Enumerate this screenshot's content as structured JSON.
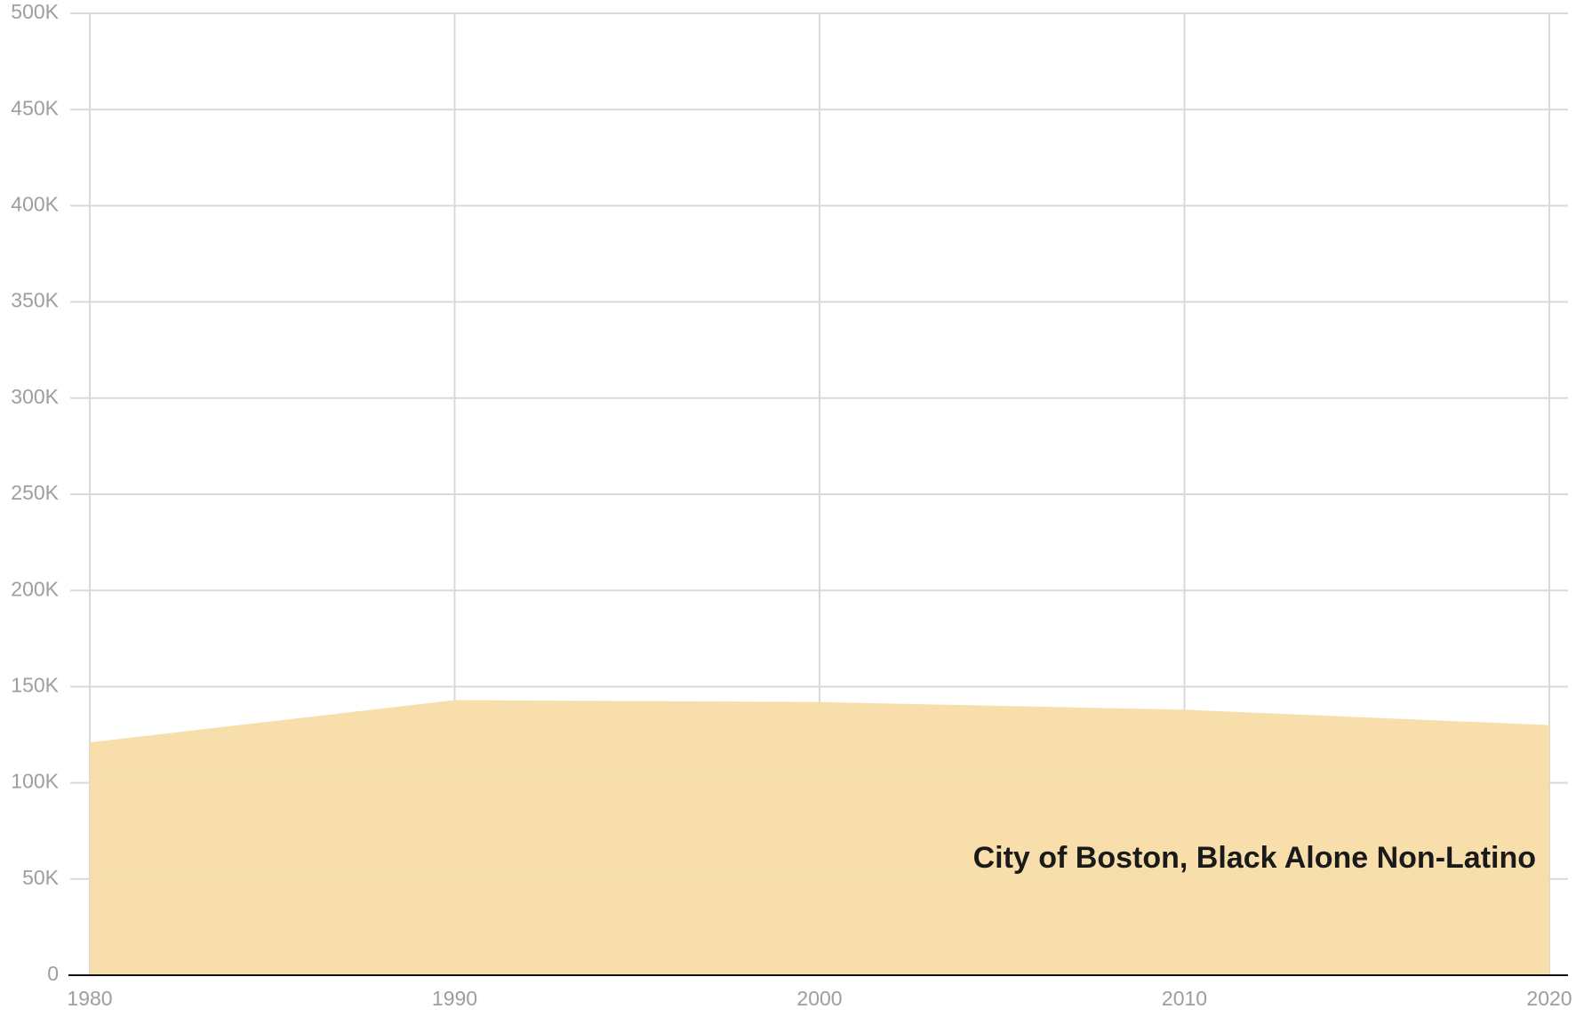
{
  "chart_data": {
    "type": "area",
    "x": [
      1980,
      1990,
      2000,
      2010,
      2020
    ],
    "series": [
      {
        "name": "City of Boston, Black Alone Non-Latino",
        "color": "#f7dca5",
        "values": [
          121000,
          143000,
          142000,
          138000,
          130000
        ]
      }
    ],
    "xlim": [
      1980,
      2020
    ],
    "xticks": [
      1980,
      1990,
      2000,
      2010,
      2020
    ],
    "ylim": [
      0,
      500000
    ],
    "yticks": [
      0,
      {
        "value": 50000,
        "label": "50K"
      },
      {
        "value": 100000,
        "label": "100K"
      },
      {
        "value": 150000,
        "label": "150K"
      },
      {
        "value": 200000,
        "label": "200K"
      },
      {
        "value": 250000,
        "label": "250K"
      },
      {
        "value": 300000,
        "label": "300K"
      },
      {
        "value": 350000,
        "label": "350K"
      },
      {
        "value": 400000,
        "label": "400K"
      },
      {
        "value": 450000,
        "label": "450K"
      },
      {
        "value": 500000,
        "label": "500K"
      }
    ],
    "grid": true
  }
}
